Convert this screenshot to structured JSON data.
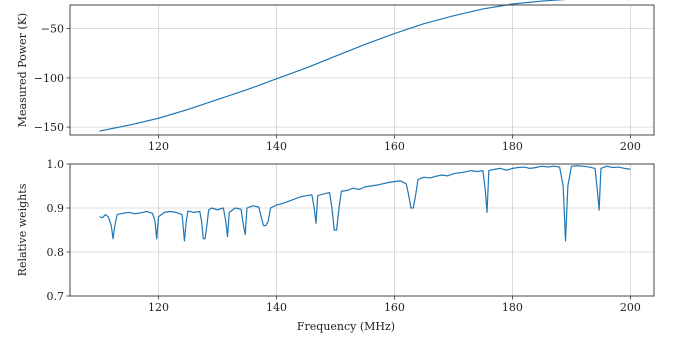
{
  "chart_data": [
    {
      "type": "line",
      "title": "",
      "xlabel": "",
      "ylabel": "Measured Power (K)",
      "xlim": [
        105,
        204
      ],
      "ylim": [
        -158,
        -26
      ],
      "xticks": [
        120,
        140,
        160,
        180,
        200
      ],
      "yticks": [
        -150,
        -100,
        -50
      ],
      "xtick_labels": [
        "120",
        "140",
        "160",
        "180",
        "200"
      ],
      "ytick_labels": [
        "−150",
        "−100",
        "−50"
      ],
      "grid": true,
      "series": [
        {
          "x": [
            110,
            115,
            120,
            125,
            130,
            135,
            140,
            145,
            150,
            155,
            160,
            165,
            170,
            175,
            180,
            185,
            190,
            195,
            200
          ],
          "y": [
            -154,
            -148,
            -141,
            -132,
            -122,
            -112,
            -101,
            -90,
            -78,
            -66,
            -55,
            -45,
            -37,
            -30,
            -25,
            -22,
            -20,
            -19.5,
            -20.5
          ]
        }
      ]
    },
    {
      "type": "line",
      "title": "",
      "xlabel": "Frequency (MHz)",
      "ylabel": "Relative weights",
      "xlim": [
        105,
        204
      ],
      "ylim": [
        0.7,
        1.0
      ],
      "xticks": [
        120,
        140,
        160,
        180,
        200
      ],
      "yticks": [
        0.7,
        0.8,
        0.9,
        1.0
      ],
      "xtick_labels": [
        "120",
        "140",
        "160",
        "180",
        "200"
      ],
      "ytick_labels": [
        "0.7",
        "0.8",
        "0.9",
        "1.0"
      ],
      "grid": true,
      "series": [
        {
          "x": [
            110,
            110.5,
            111,
            111.5,
            112,
            112.3,
            112.6,
            113,
            114,
            115,
            116,
            117,
            118,
            119,
            119.4,
            119.7,
            120,
            121,
            122,
            123,
            124,
            124.4,
            124.7,
            125,
            126,
            127,
            127.3,
            127.6,
            127.9,
            128.2,
            128.5,
            129,
            130,
            131,
            131.4,
            131.7,
            132,
            133,
            134,
            134.4,
            134.7,
            135,
            136,
            137,
            137.4,
            137.8,
            138.2,
            138.6,
            139,
            140,
            141,
            142,
            143,
            144,
            145,
            146,
            146.4,
            146.7,
            147,
            148,
            149,
            149.4,
            149.8,
            150.2,
            150.6,
            151,
            152,
            153,
            154,
            155,
            156,
            157,
            158,
            159,
            160,
            161,
            162,
            162.4,
            162.8,
            163.2,
            163.6,
            164,
            165,
            166,
            167,
            168,
            169,
            170,
            171,
            172,
            173,
            174,
            175,
            175.4,
            175.7,
            176,
            177,
            178,
            179,
            180,
            181,
            182,
            183,
            184,
            185,
            186,
            187,
            188,
            188.6,
            189,
            189.4,
            190,
            191,
            192,
            193,
            194,
            194.4,
            194.7,
            195,
            196,
            197,
            198,
            199,
            200
          ],
          "y": [
            0.88,
            0.878,
            0.885,
            0.88,
            0.86,
            0.83,
            0.86,
            0.885,
            0.888,
            0.89,
            0.887,
            0.889,
            0.892,
            0.888,
            0.87,
            0.83,
            0.88,
            0.89,
            0.892,
            0.89,
            0.885,
            0.825,
            0.87,
            0.893,
            0.89,
            0.892,
            0.87,
            0.83,
            0.83,
            0.86,
            0.895,
            0.9,
            0.896,
            0.9,
            0.87,
            0.835,
            0.89,
            0.9,
            0.897,
            0.86,
            0.84,
            0.9,
            0.905,
            0.902,
            0.88,
            0.86,
            0.86,
            0.87,
            0.9,
            0.907,
            0.91,
            0.915,
            0.92,
            0.925,
            0.928,
            0.93,
            0.9,
            0.865,
            0.928,
            0.932,
            0.935,
            0.9,
            0.85,
            0.85,
            0.9,
            0.938,
            0.94,
            0.945,
            0.942,
            0.948,
            0.95,
            0.952,
            0.955,
            0.958,
            0.96,
            0.962,
            0.955,
            0.93,
            0.9,
            0.9,
            0.93,
            0.965,
            0.97,
            0.968,
            0.972,
            0.975,
            0.973,
            0.978,
            0.98,
            0.982,
            0.985,
            0.983,
            0.985,
            0.94,
            0.89,
            0.985,
            0.988,
            0.99,
            0.986,
            0.99,
            0.992,
            0.993,
            0.99,
            0.992,
            0.995,
            0.993,
            0.995,
            0.993,
            0.95,
            0.825,
            0.95,
            0.995,
            0.996,
            0.995,
            0.993,
            0.99,
            0.94,
            0.895,
            0.99,
            0.995,
            0.992,
            0.993,
            0.99,
            0.988
          ]
        }
      ]
    }
  ]
}
